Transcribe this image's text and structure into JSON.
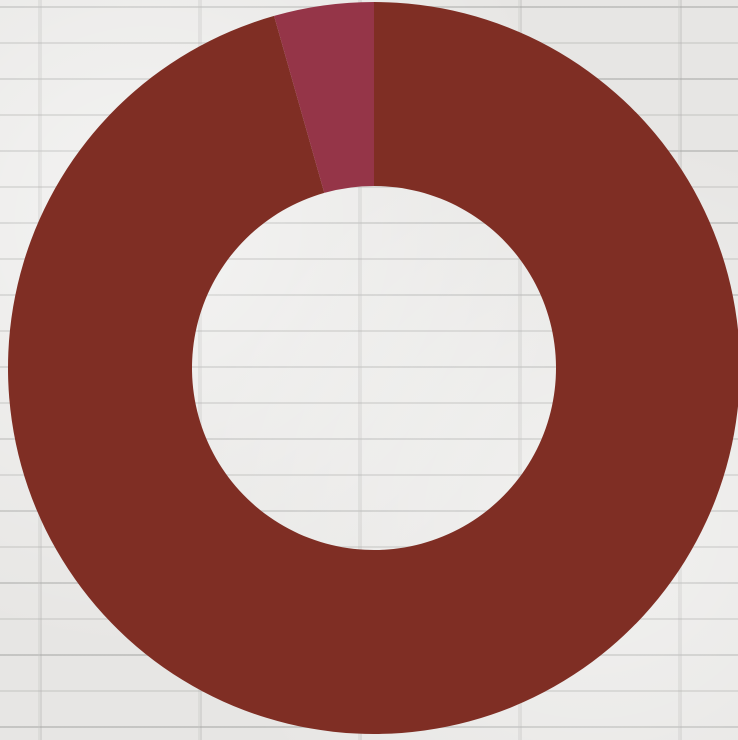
{
  "chart_data": {
    "type": "pie",
    "donut": true,
    "start_angle_deg": -90,
    "direction": "clockwise",
    "title": "",
    "legend": "none",
    "slices": [
      {
        "value": 95.6,
        "color": "#7f2e24"
      },
      {
        "value": 4.4,
        "color": "#953548"
      }
    ]
  }
}
